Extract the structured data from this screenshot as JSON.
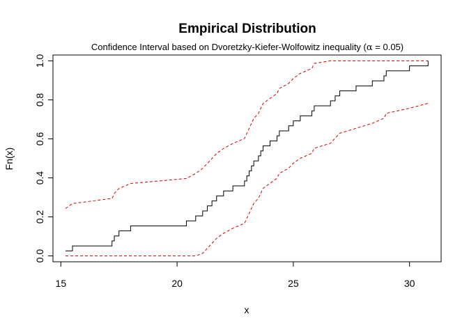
{
  "chart_data": {
    "type": "line",
    "title": "Empirical Distribution",
    "subtitle_prefix": "Confidence Interval based on Dvoretzky-Kiefer-Wolfowitz inequality (",
    "subtitle_alpha": "α",
    "subtitle_suffix": " = 0.05)",
    "xlabel": "x",
    "ylabel": "Fn(x)",
    "xlim": [
      14.66,
      31.36
    ],
    "ylim": [
      -0.03,
      1.03
    ],
    "xticks": [
      15,
      20,
      25,
      30
    ],
    "xtick_labels": [
      "15",
      "20",
      "25",
      "30"
    ],
    "yticks": [
      0.0,
      0.2,
      0.4,
      0.6,
      0.8,
      1.0
    ],
    "ytick_labels": [
      "0.0",
      "0.2",
      "0.4",
      "0.6",
      "0.8",
      "1.0"
    ],
    "grid": false,
    "colors": {
      "ecdf": "#000000",
      "band": "#cc0000"
    },
    "jump_points": [
      15.2,
      15.5,
      17.2,
      17.3,
      17.5,
      18.0,
      20.4,
      20.8,
      21.1,
      21.3,
      21.5,
      21.7,
      22.0,
      22.4,
      22.9,
      23.0,
      23.1,
      23.2,
      23.3,
      23.5,
      23.6,
      23.7,
      24.0,
      24.3,
      24.4,
      24.8,
      25.0,
      25.3,
      25.8,
      25.9,
      26.6,
      26.8,
      27.0,
      27.7,
      28.4,
      28.9,
      29.0,
      30.0,
      30.8
    ]
  }
}
